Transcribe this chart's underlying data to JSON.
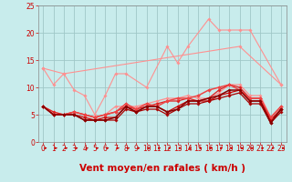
{
  "background_color": "#c8ecec",
  "grid_color": "#a0c8c8",
  "xlabel": "Vent moyen/en rafales ( km/h )",
  "xlabel_color": "#cc0000",
  "xlim": [
    -0.5,
    23.5
  ],
  "ylim": [
    0,
    25
  ],
  "yticks": [
    0,
    5,
    10,
    15,
    20,
    25
  ],
  "xticks": [
    0,
    1,
    2,
    3,
    4,
    5,
    6,
    7,
    8,
    9,
    10,
    11,
    12,
    13,
    14,
    15,
    16,
    17,
    18,
    19,
    20,
    21,
    22,
    23
  ],
  "series": [
    {
      "x": [
        0,
        1,
        2,
        3,
        4,
        5,
        6,
        7,
        8,
        10,
        12,
        13,
        14,
        16,
        17,
        18,
        19,
        20,
        23
      ],
      "y": [
        13.5,
        10.5,
        12.5,
        9.5,
        8.5,
        5.0,
        8.5,
        12.5,
        12.5,
        10.0,
        17.5,
        14.5,
        17.5,
        22.5,
        20.5,
        20.5,
        20.5,
        20.5,
        10.5
      ],
      "color": "#ff9090",
      "lw": 0.8,
      "marker": "D",
      "ms": 1.8
    },
    {
      "x": [
        0,
        2,
        19,
        23
      ],
      "y": [
        13.5,
        12.5,
        17.5,
        10.5
      ],
      "color": "#ff9090",
      "lw": 0.8,
      "marker": "D",
      "ms": 1.8
    },
    {
      "x": [
        0,
        1,
        2,
        3,
        4,
        5,
        6,
        7,
        8,
        9,
        10,
        11,
        12,
        13,
        14,
        15,
        16,
        17,
        18,
        19,
        20,
        21,
        22,
        23
      ],
      "y": [
        6.5,
        5.5,
        5.0,
        5.5,
        5.0,
        4.5,
        5.0,
        6.5,
        6.5,
        6.5,
        7.0,
        7.5,
        8.0,
        8.0,
        8.5,
        8.0,
        8.0,
        9.0,
        10.5,
        10.5,
        8.5,
        8.5,
        4.5,
        6.5
      ],
      "color": "#ff9090",
      "lw": 0.9,
      "marker": "D",
      "ms": 1.8
    },
    {
      "x": [
        0,
        1,
        2,
        3,
        4,
        5,
        6,
        7,
        8,
        9,
        10,
        11,
        12,
        13,
        14,
        15,
        16,
        17,
        18,
        19,
        20,
        21,
        22,
        23
      ],
      "y": [
        6.5,
        5.5,
        5.0,
        5.5,
        5.0,
        4.5,
        5.0,
        5.5,
        6.5,
        6.0,
        6.5,
        7.0,
        7.5,
        7.5,
        8.0,
        7.5,
        8.0,
        9.5,
        10.5,
        10.0,
        8.0,
        8.0,
        4.0,
        6.0
      ],
      "color": "#dd2020",
      "lw": 0.9,
      "marker": "D",
      "ms": 1.8
    },
    {
      "x": [
        0,
        1,
        2,
        3,
        4,
        5,
        6,
        7,
        8,
        9,
        10,
        11,
        12,
        13,
        14,
        15,
        16,
        17,
        18,
        19,
        20,
        21,
        22,
        23
      ],
      "y": [
        6.5,
        5.0,
        5.0,
        5.0,
        4.5,
        4.0,
        4.5,
        4.5,
        6.5,
        5.5,
        6.5,
        6.5,
        5.5,
        6.5,
        7.5,
        7.5,
        7.5,
        8.5,
        9.0,
        9.5,
        7.5,
        7.5,
        4.0,
        6.0
      ],
      "color": "#cc0000",
      "lw": 0.9,
      "marker": "D",
      "ms": 1.8
    },
    {
      "x": [
        0,
        1,
        2,
        3,
        4,
        5,
        6,
        7,
        8,
        9,
        10,
        11,
        12,
        13,
        14,
        15,
        16,
        17,
        18,
        19,
        20,
        21,
        22,
        23
      ],
      "y": [
        6.5,
        5.0,
        5.0,
        5.0,
        4.0,
        4.0,
        4.0,
        4.0,
        6.0,
        5.5,
        6.0,
        6.0,
        5.0,
        6.0,
        7.0,
        7.0,
        7.5,
        8.0,
        8.5,
        9.0,
        7.0,
        7.0,
        3.5,
        5.5
      ],
      "color": "#aa0000",
      "lw": 0.9,
      "marker": "D",
      "ms": 1.8
    },
    {
      "x": [
        0,
        1,
        2,
        3,
        4,
        5,
        6,
        7,
        8,
        9,
        10,
        11,
        12,
        13,
        14,
        15,
        16,
        17,
        18,
        19,
        20,
        21,
        22,
        23
      ],
      "y": [
        6.5,
        5.0,
        5.0,
        5.5,
        5.0,
        4.5,
        5.0,
        5.5,
        7.0,
        6.0,
        7.0,
        6.5,
        7.5,
        8.0,
        8.0,
        8.5,
        9.5,
        10.0,
        10.5,
        9.5,
        8.0,
        8.0,
        4.5,
        6.5
      ],
      "color": "#ee4444",
      "lw": 1.1,
      "marker": "D",
      "ms": 2.0
    },
    {
      "x": [
        0,
        1,
        2,
        3,
        4,
        5,
        6,
        7,
        8,
        9,
        10,
        11,
        12,
        13,
        14,
        15,
        16,
        17,
        18,
        19,
        20,
        21,
        22,
        23
      ],
      "y": [
        6.5,
        5.0,
        5.0,
        5.0,
        4.0,
        4.0,
        4.0,
        4.5,
        6.5,
        5.5,
        6.5,
        6.5,
        5.5,
        6.0,
        7.5,
        7.5,
        8.0,
        8.5,
        9.5,
        9.5,
        7.5,
        7.5,
        3.5,
        6.0
      ],
      "color": "#880000",
      "lw": 1.1,
      "marker": "D",
      "ms": 1.8
    }
  ],
  "arrow_color": "#cc0000",
  "tick_color": "#cc0000",
  "tick_fontsize": 5.5,
  "xlabel_fontsize": 7.5
}
